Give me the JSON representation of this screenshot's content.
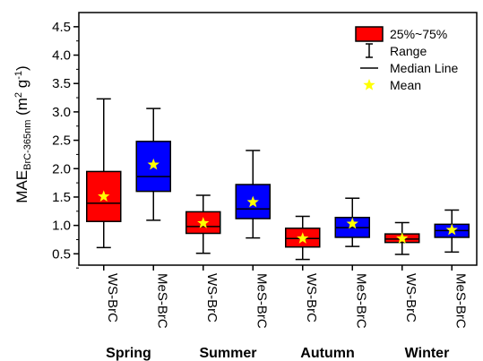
{
  "chart_data": {
    "type": "box",
    "ylabel_parts": {
      "main": "MAE",
      "sub": "BrC-365nm",
      "unit_open": " (m",
      "sup2": "2",
      "unit_mid": " g",
      "sup1": "-1",
      "unit_close": ")"
    },
    "ylim": [
      0.3,
      4.75
    ],
    "yticks": [
      "0.5",
      "1.0",
      "1.5",
      "2.0",
      "2.5",
      "3.0",
      "3.5",
      "4.0",
      "4.5"
    ],
    "ytick_values": [
      0.5,
      1.0,
      1.5,
      2.0,
      2.5,
      3.0,
      3.5,
      4.0,
      4.5
    ],
    "categories": [
      "WS-BrC",
      "MeS-BrC",
      "WS-BrC",
      "MeS-BrC",
      "WS-BrC",
      "MeS-BrC",
      "WS-BrC",
      "MeS-BrC"
    ],
    "seasons": [
      "Spring",
      "Summer",
      "Autumn",
      "Winter"
    ],
    "boxes": [
      {
        "label": "WS-BrC",
        "season": "Spring",
        "min": 0.61,
        "q1": 1.07,
        "median": 1.39,
        "q3": 1.95,
        "max": 3.23,
        "mean": 1.51,
        "color": "#ff0000"
      },
      {
        "label": "MeS-BrC",
        "season": "Spring",
        "min": 1.09,
        "q1": 1.6,
        "median": 1.86,
        "q3": 2.48,
        "max": 3.06,
        "mean": 2.07,
        "color": "#0000ff"
      },
      {
        "label": "WS-BrC",
        "season": "Summer",
        "min": 0.51,
        "q1": 0.86,
        "median": 0.98,
        "q3": 1.24,
        "max": 1.53,
        "mean": 1.04,
        "color": "#ff0000"
      },
      {
        "label": "MeS-BrC",
        "season": "Summer",
        "min": 0.78,
        "q1": 1.12,
        "median": 1.29,
        "q3": 1.72,
        "max": 2.32,
        "mean": 1.41,
        "color": "#0000ff"
      },
      {
        "label": "WS-BrC",
        "season": "Autumn",
        "min": 0.4,
        "q1": 0.62,
        "median": 0.77,
        "q3": 0.95,
        "max": 1.16,
        "mean": 0.77,
        "color": "#ff0000"
      },
      {
        "label": "MeS-BrC",
        "season": "Autumn",
        "min": 0.63,
        "q1": 0.79,
        "median": 0.96,
        "q3": 1.14,
        "max": 1.48,
        "mean": 1.03,
        "color": "#0000ff"
      },
      {
        "label": "WS-BrC",
        "season": "Winter",
        "min": 0.49,
        "q1": 0.7,
        "median": 0.76,
        "q3": 0.85,
        "max": 1.05,
        "mean": 0.77,
        "color": "#ff0000"
      },
      {
        "label": "MeS-BrC",
        "season": "Winter",
        "min": 0.53,
        "q1": 0.79,
        "median": 0.91,
        "q3": 1.02,
        "max": 1.27,
        "mean": 0.92,
        "color": "#0000ff"
      }
    ],
    "legend": {
      "position": "top-right",
      "items": [
        {
          "label": "25%~75%",
          "kind": "box"
        },
        {
          "label": "Range",
          "kind": "range"
        },
        {
          "label": "Median Line",
          "kind": "line"
        },
        {
          "label": "Mean",
          "kind": "star"
        }
      ]
    },
    "colors": {
      "ws": "#ff0000",
      "mes": "#0000ff",
      "mean_star": "#ffff00",
      "axis": "#000000"
    }
  }
}
